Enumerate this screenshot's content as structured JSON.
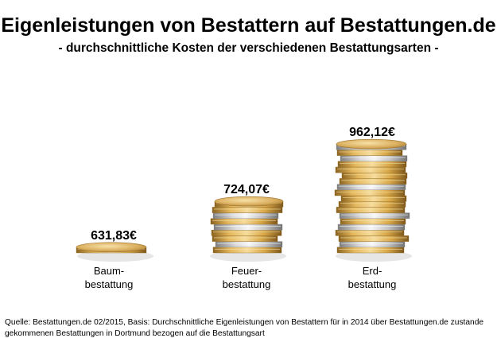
{
  "chart_data": {
    "type": "bar",
    "title": "Eigenleistungen von Bestattern auf Bestattungen.de",
    "subtitle": "- durchschnittliche Kosten der verschiedenen Bestattungsarten -",
    "categories": [
      [
        "Baum-",
        "bestattung"
      ],
      [
        "Feuer-",
        "bestattung"
      ],
      [
        "Erd-",
        "bestattung"
      ]
    ],
    "values": [
      631.83,
      724.07,
      962.12
    ],
    "value_labels": [
      "631,83€",
      "724,07€",
      "962,12€"
    ],
    "unit": "€",
    "xlabel": "",
    "ylabel": "",
    "grid": false,
    "legend": "none",
    "colors": {
      "gold": "#d6a64a",
      "gold_light": "#f1d08a",
      "gold_dark": "#9a6f24",
      "silver": "#c9c9c9",
      "silver_light": "#eeeeee",
      "silver_dark": "#8c8c8c"
    }
  },
  "source": "Quelle: Bestattungen.de 02/2015, Basis: Durchschnittliche Eigenleistungen von Bestattern für in 2014 über Bestattungen.de zustande gekommenen Bestattungen in Dortmund bezogen auf die Bestattungsart"
}
